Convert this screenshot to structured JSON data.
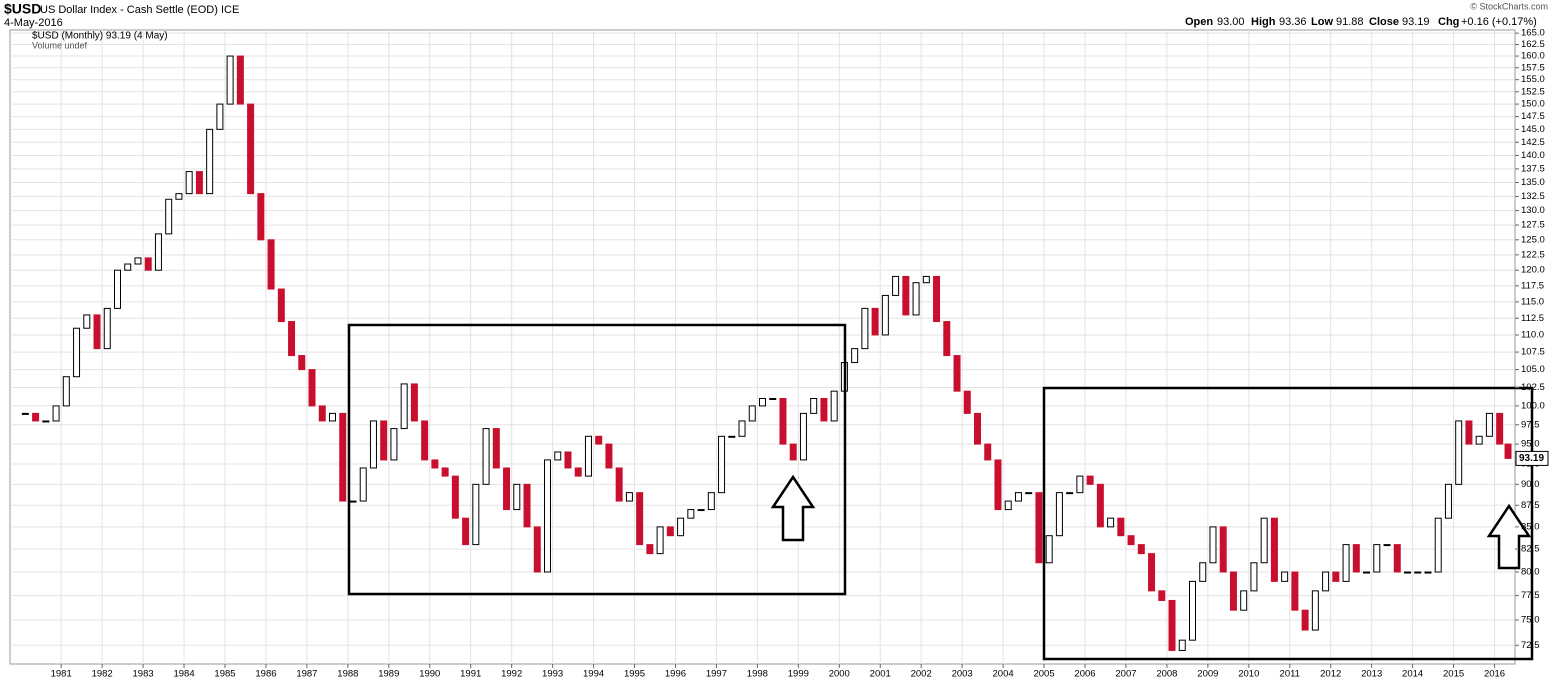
{
  "chart_data": {
    "type": "candlestick",
    "title": "$USD",
    "subtitle": "US Dollar Index - Cash Settle (EOD) ICE",
    "date": "4-May-2016",
    "quote": {
      "open_label": "Open",
      "open": "93.00",
      "high_label": "High",
      "high": "93.36",
      "low_label": "Low",
      "low": "91.88",
      "close_label": "Close",
      "close": "93.19",
      "chg_label": "Chg",
      "chg": "+0.16 (+0.17%)"
    },
    "credit": "© StockCharts.com",
    "legend": [
      "$USD (Monthly) 93.19 (4 May)",
      "Volume undef"
    ],
    "log_scale": true,
    "grid": true,
    "up_color": "#000000",
    "down_color": "#c8102e",
    "xlim": [
      1979.75,
      2016.5
    ],
    "ylim": [
      70.7,
      165.7
    ],
    "xticks": [
      1981,
      1982,
      1983,
      1984,
      1985,
      1986,
      1987,
      1988,
      1989,
      1990,
      1991,
      1992,
      1993,
      1994,
      1995,
      1996,
      1997,
      1998,
      1999,
      2000,
      2001,
      2002,
      2003,
      2004,
      2005,
      2006,
      2007,
      2008,
      2009,
      2010,
      2011,
      2012,
      2013,
      2014,
      2015,
      2016
    ],
    "yticks": [
      72.5,
      {
        "value": 75,
        "label": "75.0"
      },
      77.5,
      {
        "value": 80,
        "label": "80.0"
      },
      82.5,
      {
        "value": 85,
        "label": "85.0"
      },
      87.5,
      {
        "value": 90,
        "label": "90.0"
      },
      92.5,
      {
        "value": 95,
        "label": "95.0"
      },
      97.5,
      {
        "value": 100,
        "label": "100.0"
      },
      102.5,
      {
        "value": 105,
        "label": "105.0"
      },
      107.5,
      {
        "value": 110,
        "label": "110.0"
      },
      112.5,
      {
        "value": 115,
        "label": "115.0"
      },
      117.5,
      {
        "value": 120,
        "label": "120.0"
      },
      122.5,
      {
        "value": 125,
        "label": "125.0"
      },
      127.5,
      {
        "value": 130,
        "label": "130.0"
      },
      132.5,
      {
        "value": 135,
        "label": "135.0"
      },
      137.5,
      {
        "value": 140,
        "label": "140.0"
      },
      142.5,
      {
        "value": 145,
        "label": "145.0"
      },
      147.5,
      {
        "value": 150,
        "label": "150.0"
      },
      152.5,
      {
        "value": 155,
        "label": "155.0"
      },
      157.5,
      {
        "value": 160,
        "label": "160.0"
      },
      162.5,
      {
        "value": 165,
        "label": "165.0"
      }
    ],
    "x": [
      1980.125,
      1980.375,
      1980.625,
      1980.875,
      1981.125,
      1981.375,
      1981.625,
      1981.875,
      1982.125,
      1982.375,
      1982.625,
      1982.875,
      1983.125,
      1983.375,
      1983.625,
      1983.875,
      1984.125,
      1984.375,
      1984.625,
      1984.875,
      1985.125,
      1985.375,
      1985.625,
      1985.875,
      1986.125,
      1986.375,
      1986.625,
      1986.875,
      1987.125,
      1987.375,
      1987.625,
      1987.875,
      1988.125,
      1988.375,
      1988.625,
      1988.875,
      1989.125,
      1989.375,
      1989.625,
      1989.875,
      1990.125,
      1990.375,
      1990.625,
      1990.875,
      1991.125,
      1991.375,
      1991.625,
      1991.875,
      1992.125,
      1992.375,
      1992.625,
      1992.875,
      1993.125,
      1993.375,
      1993.625,
      1993.875,
      1994.125,
      1994.375,
      1994.625,
      1994.875,
      1995.125,
      1995.375,
      1995.625,
      1995.875,
      1996.125,
      1996.375,
      1996.625,
      1996.875,
      1997.125,
      1997.375,
      1997.625,
      1997.875,
      1998.125,
      1998.375,
      1998.625,
      1998.875,
      1999.125,
      1999.375,
      1999.625,
      1999.875,
      2000.125,
      2000.375,
      2000.625,
      2000.875,
      2001.125,
      2001.375,
      2001.625,
      2001.875,
      2002.125,
      2002.375,
      2002.625,
      2002.875,
      2003.125,
      2003.375,
      2003.625,
      2003.875,
      2004.125,
      2004.375,
      2004.625,
      2004.875,
      2005.125,
      2005.375,
      2005.625,
      2005.875,
      2006.125,
      2006.375,
      2006.625,
      2006.875,
      2007.125,
      2007.375,
      2007.625,
      2007.875,
      2008.125,
      2008.375,
      2008.625,
      2008.875,
      2009.125,
      2009.375,
      2009.625,
      2009.875,
      2010.125,
      2010.375,
      2010.625,
      2010.875,
      2011.125,
      2011.375,
      2011.625,
      2011.875,
      2012.125,
      2012.375,
      2012.625,
      2012.875,
      2013.125,
      2013.375,
      2013.625,
      2013.875,
      2014.125,
      2014.375,
      2014.625,
      2014.875,
      2015.125,
      2015.375,
      2015.625,
      2015.875,
      2016.125,
      2016.33
    ],
    "series": [
      {
        "name": "$USD (Monthly)",
        "values": [
          99,
          98,
          98,
          100,
          104,
          111,
          113,
          108,
          114,
          120,
          121,
          122,
          120,
          126,
          132,
          133,
          137,
          133,
          145,
          150,
          160,
          150,
          133,
          125,
          117,
          112,
          107,
          105,
          100,
          98,
          99,
          88,
          88,
          92,
          98,
          93,
          97,
          103,
          98,
          93,
          92,
          91,
          86,
          83,
          90,
          97,
          92,
          87,
          90,
          85,
          80,
          93,
          94,
          92,
          91,
          96,
          95,
          92,
          88,
          89,
          83,
          82,
          85,
          84,
          86,
          87,
          87,
          89,
          96,
          96,
          98,
          100,
          101,
          101,
          95,
          93,
          99,
          101,
          98,
          102,
          106,
          108,
          114,
          110,
          116,
          119,
          113,
          118,
          119,
          112,
          107,
          102,
          99,
          95,
          93,
          87,
          88,
          89,
          89,
          81,
          84,
          89,
          89,
          91,
          90,
          85,
          86,
          84,
          83,
          82,
          78,
          77,
          72,
          73,
          79,
          81,
          85,
          80,
          76,
          78,
          81,
          86,
          79,
          80,
          76,
          74,
          78,
          80,
          79,
          83,
          80,
          80,
          83,
          83,
          80,
          80,
          80,
          80,
          86,
          90,
          98,
          95,
          96,
          99,
          95,
          93.19
        ]
      }
    ]
  }
}
